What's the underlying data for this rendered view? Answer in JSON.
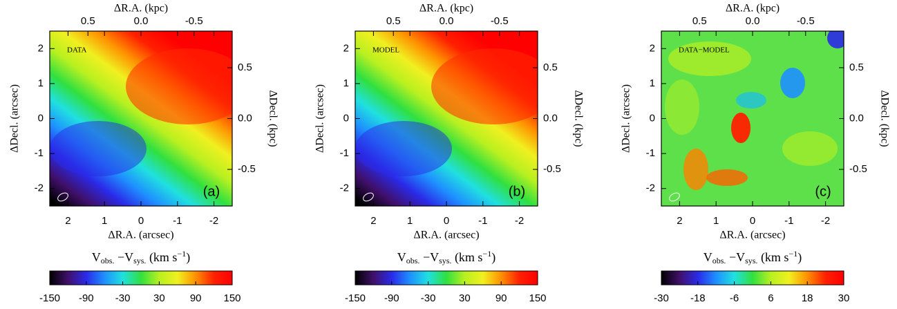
{
  "chart_data": [
    {
      "type": "map",
      "inner_label": "DATA",
      "panel_label": "(a)",
      "xlabel": "ΔR.A. (arcsec)",
      "ylabel": "ΔDecl. (arcsec)",
      "x2label": "ΔR.A. (kpc)",
      "y2label": "ΔDecl. (kpc)",
      "xlim": [
        2.5,
        -2.5
      ],
      "xticks": [
        2,
        1,
        0,
        -1,
        -2
      ],
      "ylim": [
        -2.5,
        2.5
      ],
      "yticks": [
        -2,
        -1,
        0,
        1,
        2
      ],
      "x2lim": [
        0.86,
        -0.86
      ],
      "x2ticks": [
        0.5,
        {
          "value": 0,
          "label": "0.0"
        },
        -0.5
      ],
      "y2lim": [
        -0.86,
        0.86
      ],
      "y2ticks": [
        -0.5,
        {
          "value": 0,
          "label": "0.0"
        },
        0.5
      ],
      "colorbar": {
        "label_parts": [
          "V",
          "obs.",
          " −V",
          "sys.",
          " (km s",
          "−1",
          ")"
        ],
        "lim": [
          -150,
          150
        ],
        "ticks": [
          -150,
          -90,
          -30,
          30,
          90,
          150
        ]
      },
      "colormap": [
        "#000000",
        "#40106a",
        "#2a2ae8",
        "#1e90ff",
        "#20e0e0",
        "#30e040",
        "#b8f020",
        "#f0f020",
        "#ff9000",
        "#ff2000",
        "#ff0000"
      ]
    },
    {
      "type": "map",
      "inner_label": "MODEL",
      "panel_label": "(b)",
      "xlabel": "ΔR.A. (arcsec)",
      "ylabel": "ΔDecl. (arcsec)",
      "x2label": "ΔR.A. (kpc)",
      "y2label": "ΔDecl. (kpc)",
      "xlim": [
        2.5,
        -2.5
      ],
      "xticks": [
        2,
        1,
        0,
        -1,
        -2
      ],
      "ylim": [
        -2.5,
        2.5
      ],
      "yticks": [
        -2,
        -1,
        0,
        1,
        2
      ],
      "x2lim": [
        0.86,
        -0.86
      ],
      "x2ticks": [
        0.5,
        {
          "value": 0,
          "label": "0.0"
        },
        -0.5
      ],
      "y2lim": [
        -0.86,
        0.86
      ],
      "y2ticks": [
        -0.5,
        {
          "value": 0,
          "label": "0.0"
        },
        0.5
      ],
      "colorbar": {
        "label_parts": [
          "V",
          "obs.",
          " −V",
          "sys.",
          " (km s",
          "−1",
          ")"
        ],
        "lim": [
          -150,
          150
        ],
        "ticks": [
          -150,
          -90,
          -30,
          30,
          90,
          150
        ]
      },
      "colormap": [
        "#000000",
        "#40106a",
        "#2a2ae8",
        "#1e90ff",
        "#20e0e0",
        "#30e040",
        "#b8f020",
        "#f0f020",
        "#ff9000",
        "#ff2000",
        "#ff0000"
      ]
    },
    {
      "type": "residual-map",
      "inner_label": "DATA−MODEL",
      "panel_label": "(c)",
      "xlabel": "ΔR.A. (arcsec)",
      "ylabel": "ΔDecl. (arcsec)",
      "x2label": "ΔR.A. (kpc)",
      "y2label": "ΔDecl. (kpc)",
      "xlim": [
        2.5,
        -2.5
      ],
      "xticks": [
        2,
        1,
        0,
        -1,
        -2
      ],
      "ylim": [
        -2.5,
        2.5
      ],
      "yticks": [
        -2,
        -1,
        0,
        1,
        2
      ],
      "x2lim": [
        0.86,
        -0.86
      ],
      "x2ticks": [
        0.5,
        {
          "value": 0,
          "label": "0.0"
        },
        -0.5
      ],
      "y2lim": [
        -0.86,
        0.86
      ],
      "y2ticks": [
        -0.5,
        {
          "value": 0,
          "label": "0.0"
        },
        0.5
      ],
      "colorbar": {
        "label_parts": [
          "V",
          "obs.",
          " −V",
          "sys.",
          " (km s",
          "−1",
          ")"
        ],
        "lim": [
          -30,
          30
        ],
        "ticks": [
          -30,
          -18,
          -6,
          6,
          18,
          30
        ]
      },
      "colormap": [
        "#000000",
        "#40106a",
        "#2a2ae8",
        "#1e90ff",
        "#20e0e0",
        "#30e040",
        "#b8f020",
        "#f0f020",
        "#ff9000",
        "#ff2000",
        "#ff0000"
      ]
    }
  ]
}
